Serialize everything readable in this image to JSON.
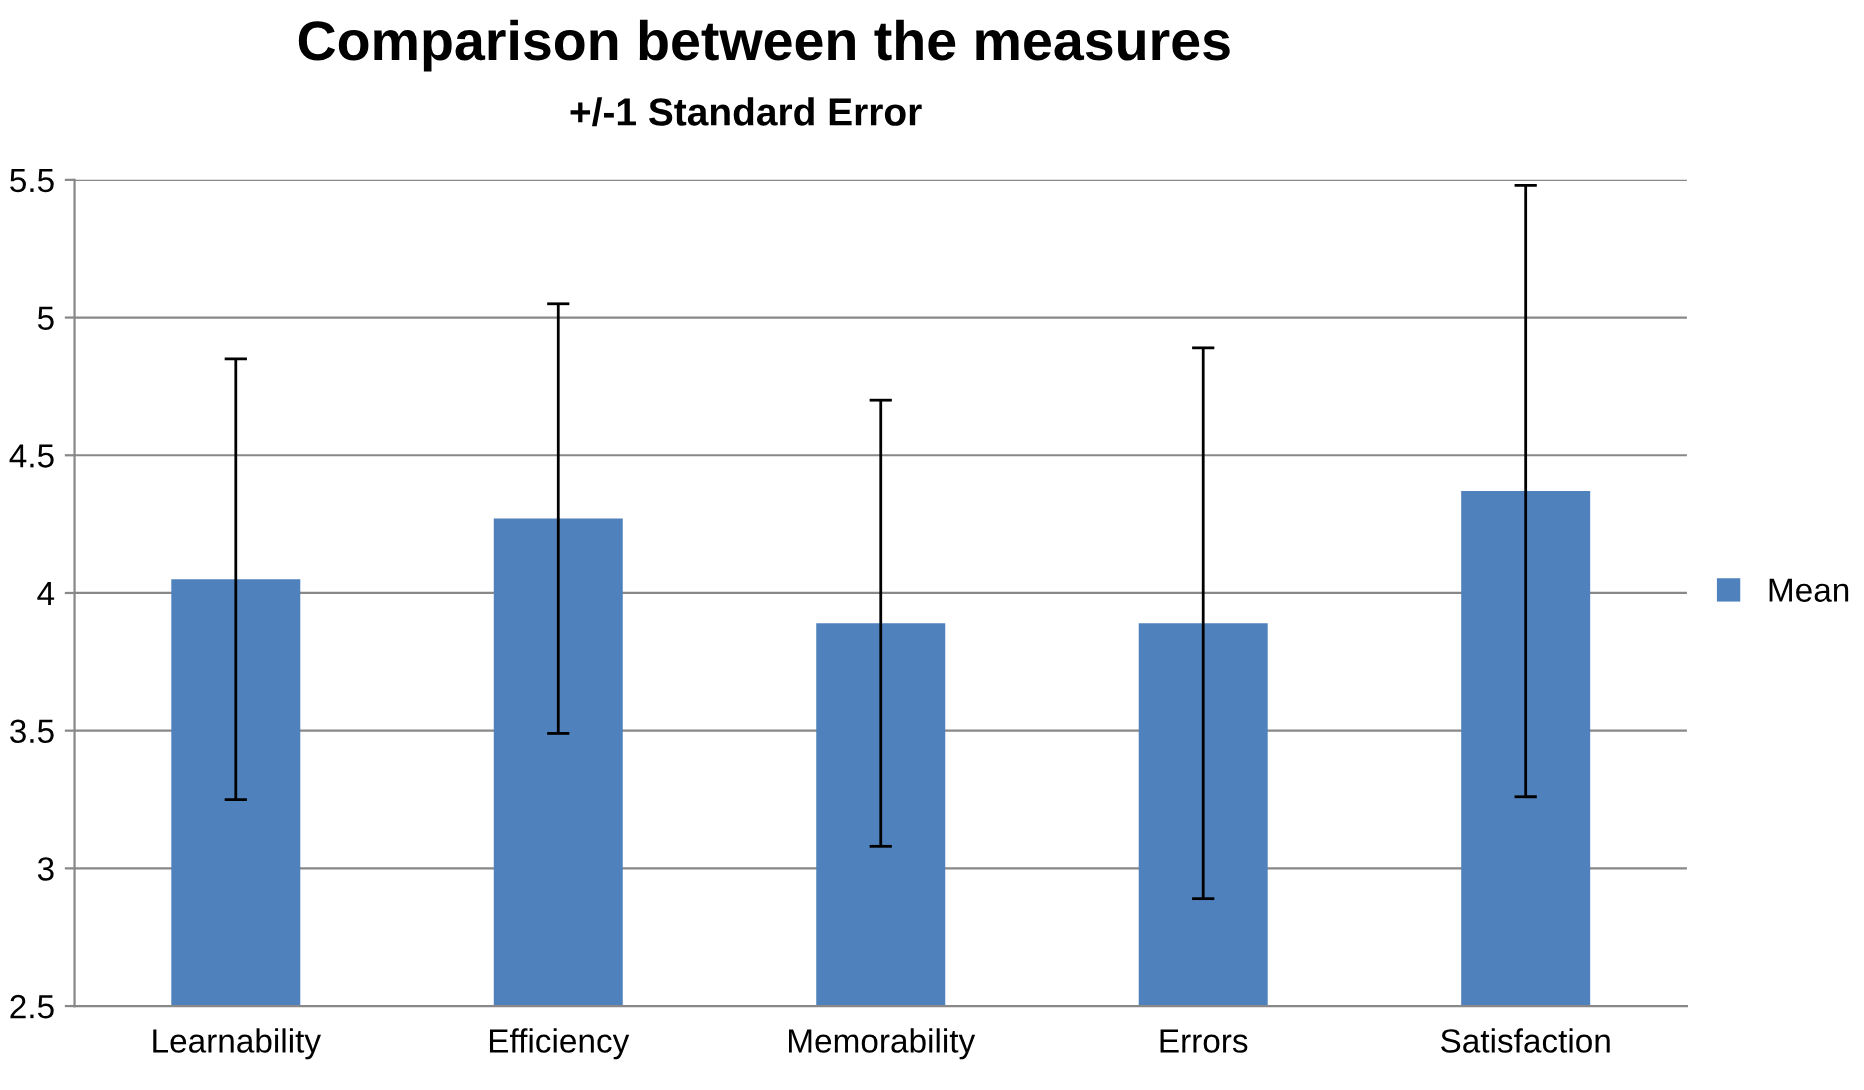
{
  "chart_data": {
    "type": "bar",
    "title": "Comparison between the measures",
    "subtitle": "+/-1 Standard Error",
    "categories": [
      "Learnability",
      "Efficiency",
      "Memorability",
      "Errors",
      "Satisfaction"
    ],
    "series": [
      {
        "name": "Mean",
        "color": "#4f81bd",
        "values": [
          4.05,
          4.27,
          3.89,
          3.89,
          4.37
        ],
        "errors": [
          0.8,
          0.78,
          0.81,
          1.0,
          1.11
        ]
      }
    ],
    "ylim": [
      2.5,
      5.5
    ],
    "yticks": [
      {
        "value": 2.5,
        "label": "2.5"
      },
      {
        "value": 3,
        "label": "3"
      },
      {
        "value": 3.5,
        "label": "3.5"
      },
      {
        "value": 4,
        "label": "4"
      },
      {
        "value": 4.5,
        "label": "4.5"
      },
      {
        "value": 5,
        "label": "5"
      },
      {
        "value": 5.5,
        "label": "5.5"
      }
    ],
    "grid": "y",
    "legend": "right"
  }
}
